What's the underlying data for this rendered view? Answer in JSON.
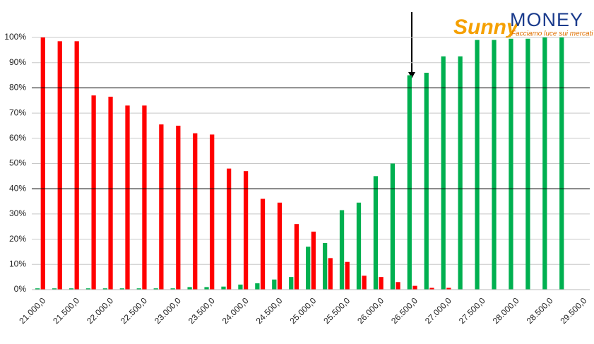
{
  "chart_data": {
    "type": "bar",
    "logo": {
      "brand": "Sunny",
      "name": "MONEY",
      "tagline": "Facciamo luce sui mercati"
    },
    "categories": [
      "21.000,0",
      null,
      "21.500,0",
      null,
      "22.000,0",
      null,
      "22.500,0",
      null,
      "23.000,0",
      null,
      "23.500,0",
      null,
      "24.000,0",
      null,
      "24.500,0",
      null,
      "25.000,0",
      null,
      "25.500,0",
      null,
      "26.000,0",
      null,
      "26.500,0",
      null,
      "27.000,0",
      null,
      "27.500,0",
      null,
      "28.000,0",
      null,
      "28.500,0",
      null,
      "29.500,0"
    ],
    "series": [
      {
        "color": "#00b050",
        "values": [
          0.5,
          0.5,
          0.5,
          0.5,
          0.5,
          0.5,
          0.5,
          0.5,
          0.5,
          1,
          1,
          1.2,
          2,
          2.5,
          4,
          5,
          17,
          18.5,
          31.5,
          34.5,
          45,
          50,
          85,
          86,
          92.5,
          92.5,
          99,
          99,
          99.5,
          99.5,
          100,
          100,
          null
        ]
      },
      {
        "color": "#ff0000",
        "values": [
          100,
          98.5,
          98.5,
          77,
          76.5,
          73,
          73,
          65.5,
          65,
          62,
          61.5,
          48,
          47,
          36,
          34.5,
          26,
          23,
          12.5,
          11,
          5.5,
          5,
          3,
          1.5,
          0.7,
          0.7,
          0,
          0,
          0,
          0,
          0,
          0,
          0,
          null
        ]
      }
    ],
    "ylim": [
      0,
      100
    ],
    "yticks": [
      {
        "value": 0,
        "label": "0%"
      },
      {
        "value": 10,
        "label": "10%"
      },
      {
        "value": 20,
        "label": "20%"
      },
      {
        "value": 30,
        "label": "30%"
      },
      {
        "value": 40,
        "label": "40%"
      },
      {
        "value": 50,
        "label": "50%"
      },
      {
        "value": 60,
        "label": "60%"
      },
      {
        "value": 70,
        "label": "70%"
      },
      {
        "value": 80,
        "label": "80%"
      },
      {
        "value": 90,
        "label": "90%"
      },
      {
        "value": 100,
        "label": "100%"
      }
    ],
    "reference_lines": [
      80,
      40
    ],
    "grid": true
  }
}
